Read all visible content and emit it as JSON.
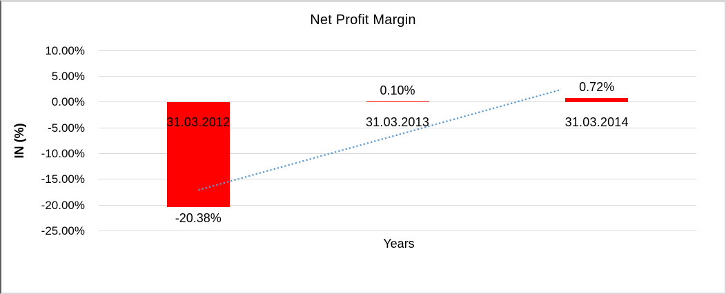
{
  "chart_data": {
    "type": "bar",
    "title": "Net Profit Margin",
    "xlabel": "Years",
    "ylabel": "IN (%)",
    "categories": [
      "31.03.2012",
      "31.03.2013",
      "31.03.2014"
    ],
    "values": [
      -20.38,
      0.1,
      0.72
    ],
    "data_labels": [
      "-20.38%",
      "0.10%",
      "0.72%"
    ],
    "yticks": [
      10,
      5,
      0,
      -5,
      -10,
      -15,
      -20,
      -25
    ],
    "ytick_labels": [
      "10.00%",
      "5.00%",
      "0.00%",
      "-5.00%",
      "-10.00%",
      "-15.00%",
      "-20.00%",
      "-25.00%"
    ],
    "ylim": [
      -25,
      10
    ],
    "grid": true,
    "legend": false,
    "bar_color": "#FF0000",
    "grid_color": "#D9D9D9",
    "text_color": "#000000",
    "trendline": {
      "type": "linear",
      "style": "dotted",
      "color": "#5B9BD5",
      "start_pct": -17.1,
      "end_pct": 3.5
    }
  }
}
